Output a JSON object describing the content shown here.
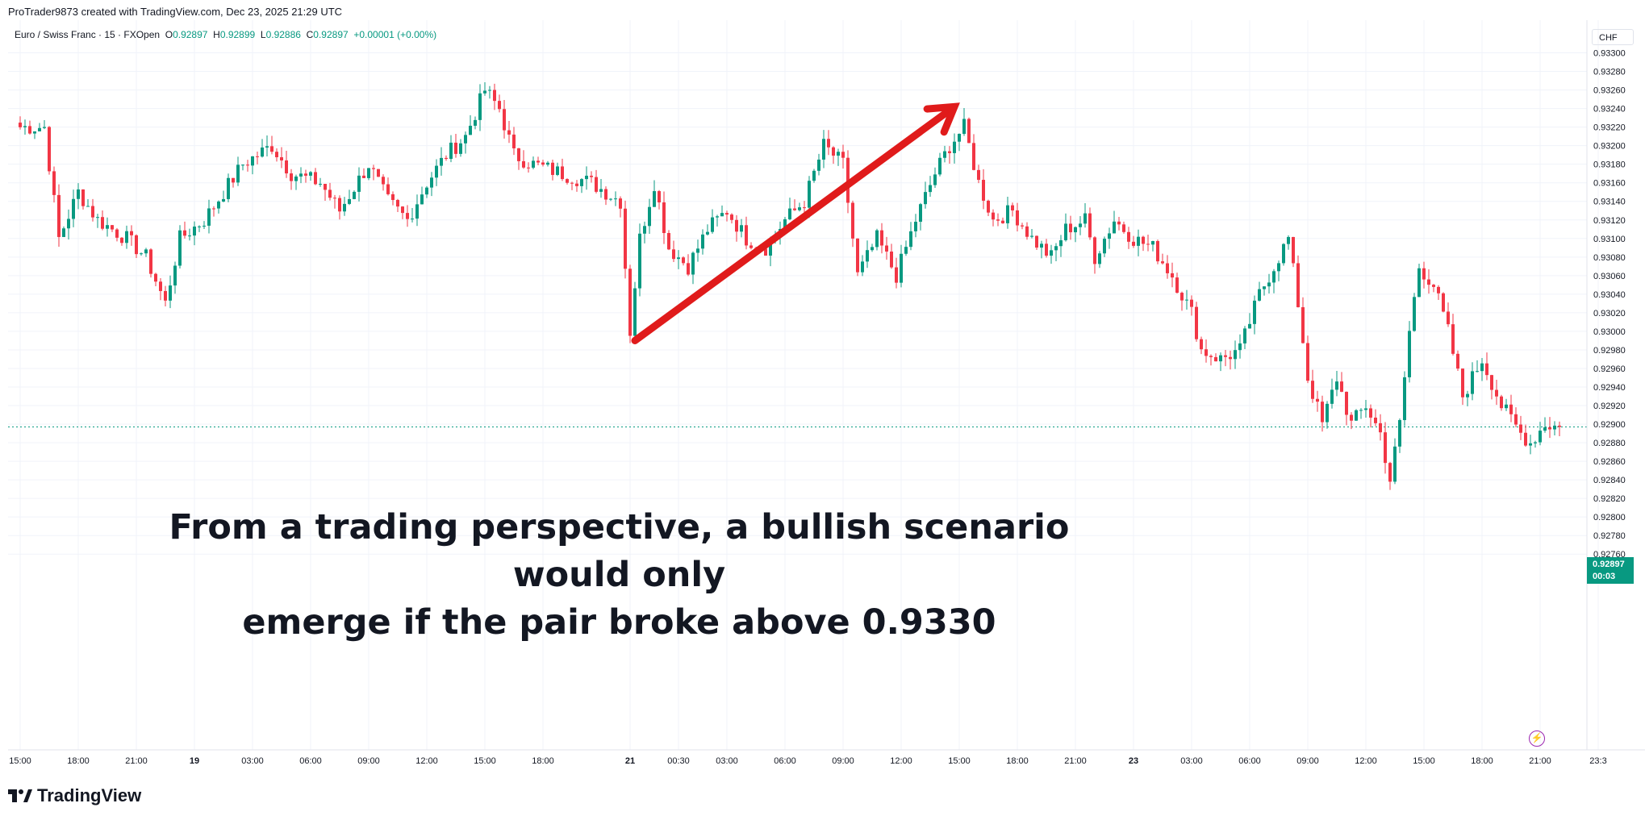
{
  "header": {
    "credit": "ProTrader9873 created with TradingView.com, Dec 23, 2025 21:29 UTC"
  },
  "legend": {
    "symbol": "Euro / Swiss Franc · 15 · FXOpen",
    "o_label": "O",
    "o_value": "0.92897",
    "h_label": "H",
    "h_value": "0.92899",
    "l_label": "L",
    "l_value": "0.92886",
    "c_label": "C",
    "c_value": "0.92897",
    "change": "+0.00001 (+0.00%)"
  },
  "currency_button": "CHF",
  "price_badge": {
    "price": "0.92897",
    "countdown": "00:03"
  },
  "annotation": {
    "line1": "From a trading perspective, a bullish scenario would only",
    "line2": "emerge if the pair broke above 0.9330"
  },
  "brand": {
    "name": "TradingView",
    "logo_icon": "tradingview-logo-icon"
  },
  "colors": {
    "up": "#089981",
    "down": "#f23645",
    "arrow": "#e01b1b",
    "text": "#131722",
    "grid": "#f0f3fa"
  },
  "chart_data": {
    "type": "candlestick",
    "symbol": "EURCHF",
    "timeframe": "15",
    "ylim": [
      0.9275,
      0.9332
    ],
    "y_ticks": [
      "0.93300",
      "0.93280",
      "0.93260",
      "0.93240",
      "0.93220",
      "0.93200",
      "0.93180",
      "0.93160",
      "0.93140",
      "0.93120",
      "0.93100",
      "0.93080",
      "0.93060",
      "0.93040",
      "0.93020",
      "0.93000",
      "0.92980",
      "0.92960",
      "0.92940",
      "0.92920",
      "0.92900",
      "0.92880",
      "0.92860",
      "0.92840",
      "0.92820",
      "0.92800",
      "0.92780",
      "0.92760"
    ],
    "x_ticks": [
      {
        "label": "15:00",
        "bold": false,
        "i": 0
      },
      {
        "label": "18:00",
        "bold": false,
        "i": 12
      },
      {
        "label": "21:00",
        "bold": false,
        "i": 24
      },
      {
        "label": "19",
        "bold": true,
        "i": 36
      },
      {
        "label": "03:00",
        "bold": false,
        "i": 48
      },
      {
        "label": "06:00",
        "bold": false,
        "i": 60
      },
      {
        "label": "09:00",
        "bold": false,
        "i": 72
      },
      {
        "label": "12:00",
        "bold": false,
        "i": 84
      },
      {
        "label": "15:00",
        "bold": false,
        "i": 96
      },
      {
        "label": "18:00",
        "bold": false,
        "i": 108
      },
      {
        "label": "21",
        "bold": true,
        "i": 126
      },
      {
        "label": "00:30",
        "bold": false,
        "i": 136
      },
      {
        "label": "03:00",
        "bold": false,
        "i": 146
      },
      {
        "label": "06:00",
        "bold": false,
        "i": 158
      },
      {
        "label": "09:00",
        "bold": false,
        "i": 170
      },
      {
        "label": "12:00",
        "bold": false,
        "i": 182
      },
      {
        "label": "15:00",
        "bold": false,
        "i": 194
      },
      {
        "label": "18:00",
        "bold": false,
        "i": 206
      },
      {
        "label": "21:00",
        "bold": false,
        "i": 218
      },
      {
        "label": "23",
        "bold": true,
        "i": 230
      },
      {
        "label": "03:00",
        "bold": false,
        "i": 242
      },
      {
        "label": "06:00",
        "bold": false,
        "i": 254
      },
      {
        "label": "09:00",
        "bold": false,
        "i": 266
      },
      {
        "label": "12:00",
        "bold": false,
        "i": 278
      },
      {
        "label": "15:00",
        "bold": false,
        "i": 290
      },
      {
        "label": "18:00",
        "bold": false,
        "i": 302
      },
      {
        "label": "21:00",
        "bold": false,
        "i": 314
      },
      {
        "label": "23:3",
        "bold": false,
        "i": 326
      }
    ],
    "current_price": 0.92897,
    "arrow": {
      "from_index": 127,
      "from_price": 0.9299,
      "to_index": 193,
      "to_price": 0.93242
    },
    "close_path": [
      [
        0,
        0.9322
      ],
      [
        5,
        0.9322
      ],
      [
        8,
        0.931
      ],
      [
        12,
        0.9315
      ],
      [
        16,
        0.9312
      ],
      [
        22,
        0.931
      ],
      [
        26,
        0.9308
      ],
      [
        30,
        0.9303
      ],
      [
        33,
        0.931
      ],
      [
        38,
        0.9312
      ],
      [
        42,
        0.9315
      ],
      [
        46,
        0.9318
      ],
      [
        52,
        0.932
      ],
      [
        56,
        0.9317
      ],
      [
        62,
        0.9316
      ],
      [
        66,
        0.9313
      ],
      [
        72,
        0.9318
      ],
      [
        76,
        0.9314
      ],
      [
        80,
        0.9312
      ],
      [
        84,
        0.9316
      ],
      [
        88,
        0.9319
      ],
      [
        92,
        0.9321
      ],
      [
        96,
        0.9326
      ],
      [
        99,
        0.9324
      ],
      [
        102,
        0.9319
      ],
      [
        106,
        0.9318
      ],
      [
        112,
        0.9317
      ],
      [
        118,
        0.9316
      ],
      [
        124,
        0.9314
      ],
      [
        126,
        0.93
      ],
      [
        128,
        0.931
      ],
      [
        131,
        0.9316
      ],
      [
        134,
        0.9309
      ],
      [
        138,
        0.9307
      ],
      [
        142,
        0.9311
      ],
      [
        146,
        0.9313
      ],
      [
        150,
        0.931
      ],
      [
        154,
        0.9309
      ],
      [
        158,
        0.9312
      ],
      [
        162,
        0.9314
      ],
      [
        166,
        0.932
      ],
      [
        170,
        0.9318
      ],
      [
        173,
        0.9306
      ],
      [
        177,
        0.931
      ],
      [
        181,
        0.9306
      ],
      [
        185,
        0.9312
      ],
      [
        189,
        0.9317
      ],
      [
        192,
        0.932
      ],
      [
        195,
        0.9322
      ],
      [
        198,
        0.9316
      ],
      [
        201,
        0.9312
      ],
      [
        205,
        0.9313
      ],
      [
        209,
        0.931
      ],
      [
        213,
        0.9308
      ],
      [
        216,
        0.9311
      ],
      [
        220,
        0.9312
      ],
      [
        222,
        0.9308
      ],
      [
        226,
        0.9312
      ],
      [
        230,
        0.931
      ],
      [
        234,
        0.9309
      ],
      [
        238,
        0.9306
      ],
      [
        242,
        0.9302
      ],
      [
        244,
        0.9298
      ],
      [
        248,
        0.9297
      ],
      [
        252,
        0.9298
      ],
      [
        256,
        0.9304
      ],
      [
        259,
        0.9307
      ],
      [
        262,
        0.931
      ],
      [
        264,
        0.9303
      ],
      [
        266,
        0.9295
      ],
      [
        269,
        0.929
      ],
      [
        272,
        0.9295
      ],
      [
        275,
        0.929
      ],
      [
        278,
        0.9292
      ],
      [
        281,
        0.9289
      ],
      [
        283,
        0.9284
      ],
      [
        285,
        0.929
      ],
      [
        287,
        0.93
      ],
      [
        289,
        0.9307
      ],
      [
        292,
        0.9305
      ],
      [
        295,
        0.93
      ],
      [
        298,
        0.9293
      ],
      [
        302,
        0.9297
      ],
      [
        306,
        0.9292
      ],
      [
        310,
        0.9289
      ],
      [
        312,
        0.9288
      ],
      [
        315,
        0.929
      ],
      [
        318,
        0.92897
      ]
    ]
  }
}
